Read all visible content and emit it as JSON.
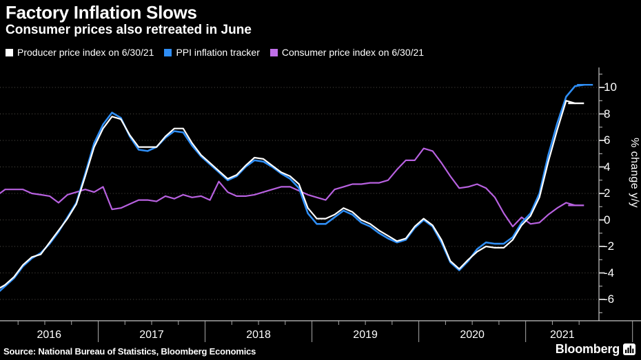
{
  "header": {
    "title": "Factory Inflation Slows",
    "subtitle": "Consumer prices also retreated in June"
  },
  "legend": {
    "items": [
      {
        "label": "Producer price index on 6/30/21",
        "color": "#ffffff"
      },
      {
        "label": "PPI inflation tracker",
        "color": "#2f8ef5"
      },
      {
        "label": "Consumer price index on 6/30/21",
        "color": "#c06fe8"
      }
    ]
  },
  "chart_data": {
    "type": "line",
    "title": "Factory Inflation Slows",
    "subtitle": "Consumer prices also retreated in June",
    "x_start": "2016-01",
    "x_frequency": "monthly",
    "x_tick_labels": [
      "2016",
      "2017",
      "2018",
      "2019",
      "2020",
      "2021"
    ],
    "ylabel": "% change y/y",
    "ylim": [
      -7.6,
      11.5
    ],
    "y_axis": {
      "label": "% change y/y",
      "ticks": [
        10,
        8,
        6,
        4,
        2,
        0,
        -2,
        -4,
        -6
      ],
      "minor_ticks": [
        11,
        9,
        7,
        5,
        3,
        1,
        -1,
        -3,
        -5,
        -7
      ]
    },
    "grid": "dotted-horizontal",
    "legend_position": "top-left",
    "series": [
      {
        "name": "Consumer price index on 6/30/21",
        "color": "#b861e0",
        "width": 2.2,
        "values": [
          1.8,
          2.3,
          2.3,
          2.3,
          2.0,
          1.9,
          1.8,
          1.3,
          1.9,
          2.1,
          2.3,
          2.1,
          2.5,
          0.8,
          0.9,
          1.2,
          1.5,
          1.5,
          1.4,
          1.8,
          1.6,
          1.9,
          1.7,
          1.8,
          1.5,
          2.9,
          2.1,
          1.8,
          1.8,
          1.9,
          2.1,
          2.3,
          2.5,
          2.5,
          2.2,
          1.9,
          1.7,
          1.5,
          2.3,
          2.5,
          2.7,
          2.7,
          2.8,
          2.8,
          3.0,
          3.8,
          4.5,
          4.5,
          5.4,
          5.2,
          4.3,
          3.3,
          2.4,
          2.5,
          2.7,
          2.4,
          1.7,
          0.5,
          -0.5,
          0.2,
          -0.3,
          -0.2,
          0.4,
          0.9,
          1.3,
          1.1
        ]
      },
      {
        "name": "PPI inflation tracker",
        "color": "#2f8ef5",
        "width": 2.6,
        "values": [
          -5.6,
          -5.0,
          -4.4,
          -3.5,
          -2.9,
          -2.5,
          -1.8,
          -0.9,
          0.2,
          1.3,
          3.5,
          5.8,
          7.2,
          8.1,
          7.7,
          6.3,
          5.3,
          5.2,
          5.5,
          6.2,
          6.7,
          6.6,
          5.6,
          4.8,
          4.2,
          3.6,
          3.0,
          3.3,
          4.0,
          4.5,
          4.4,
          4.0,
          3.5,
          3.1,
          2.4,
          0.5,
          -0.3,
          -0.3,
          0.2,
          0.7,
          0.4,
          -0.2,
          -0.5,
          -1.0,
          -1.4,
          -1.7,
          -1.5,
          -0.6,
          0.0,
          -0.5,
          -1.7,
          -3.2,
          -3.8,
          -3.1,
          -2.2,
          -1.7,
          -1.8,
          -1.8,
          -1.3,
          -0.2,
          0.5,
          2.0,
          4.9,
          7.3,
          9.3,
          10.1,
          10.2
        ]
      },
      {
        "name": "Producer price index on 6/30/21",
        "color": "#ffffff",
        "width": 2.2,
        "values": [
          -5.3,
          -4.9,
          -4.3,
          -3.4,
          -2.8,
          -2.6,
          -1.7,
          -0.8,
          0.1,
          1.2,
          3.3,
          5.5,
          6.9,
          7.8,
          7.6,
          6.4,
          5.5,
          5.5,
          5.5,
          6.3,
          6.9,
          6.9,
          5.8,
          4.9,
          4.3,
          3.7,
          3.1,
          3.4,
          4.1,
          4.7,
          4.6,
          4.1,
          3.6,
          3.3,
          2.7,
          0.9,
          0.1,
          0.1,
          0.4,
          0.9,
          0.6,
          0.0,
          -0.3,
          -0.8,
          -1.2,
          -1.6,
          -1.4,
          -0.5,
          0.1,
          -0.4,
          -1.5,
          -3.1,
          -3.7,
          -3.0,
          -2.4,
          -2.0,
          -2.1,
          -2.1,
          -1.5,
          -0.4,
          0.3,
          1.7,
          4.4,
          6.8,
          9.0,
          8.8
        ]
      }
    ]
  },
  "footer": {
    "source": "Source: National Bureau of Statistics, Bloomberg Economics",
    "brand": "Bloomberg"
  },
  "colors": {
    "background": "#000000",
    "grid": "#55524a",
    "axis": "#c8c8c8",
    "text": "#ffffff"
  }
}
